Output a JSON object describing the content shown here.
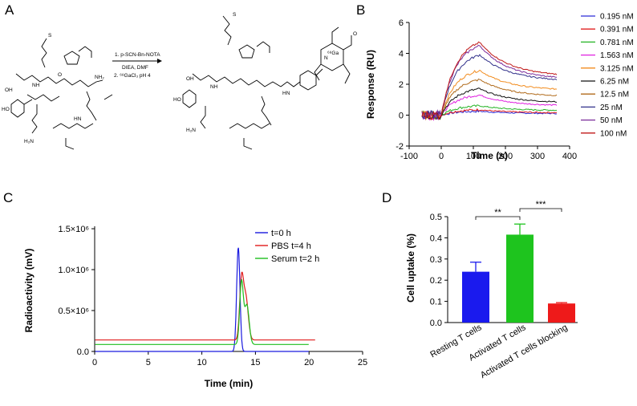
{
  "panels": {
    "a": {
      "letter": "A",
      "reaction_conditions": [
        "1. p-SCN-Bn-NOTA",
        "DIEA, DMF",
        "2. ⁶⁸GaCl₃ pH 4"
      ],
      "atom_labels": {
        "S": "S",
        "OH": "OH",
        "HO": "HO",
        "NH": "NH",
        "HN": "HN",
        "NH2": "NH₂",
        "H2N": "H₂N",
        "O": "O",
        "N": "N",
        "Ga": "⁶⁸Ga"
      }
    },
    "b": {
      "letter": "B"
    },
    "c": {
      "letter": "C"
    },
    "d": {
      "letter": "D"
    }
  },
  "chart_data": [
    {
      "id": "B",
      "type": "line",
      "title": "",
      "xlabel": "Time (s)",
      "ylabel": "Response (RU)",
      "xlim": [
        -100,
        400
      ],
      "ylim": [
        -2,
        6
      ],
      "xticks": [
        "-100",
        "0",
        "100",
        "200",
        "300",
        "400"
      ],
      "yticks": [
        "-2",
        "0",
        "2",
        "4",
        "6"
      ],
      "association_end_s": 120,
      "series": [
        {
          "name": "0.195 nM",
          "color": "#2b2bd8",
          "peak": 0.25,
          "end": 0.1
        },
        {
          "name": "0.391 nM",
          "color": "#e02020",
          "peak": 0.35,
          "end": 0.15
        },
        {
          "name": "0.781 nM",
          "color": "#22b322",
          "peak": 0.6,
          "end": 0.3
        },
        {
          "name": "1.563 nM",
          "color": "#e020e0",
          "peak": 1.3,
          "end": 0.6
        },
        {
          "name": "3.125 nM",
          "color": "#f28c1e",
          "peak": 2.9,
          "end": 1.6
        },
        {
          "name": "6.25 nM",
          "color": "#111111",
          "peak": 1.7,
          "end": 0.8
        },
        {
          "name": "12.5 nM",
          "color": "#b06a1a",
          "peak": 2.3,
          "end": 1.2
        },
        {
          "name": "25 nM",
          "color": "#30308a",
          "peak": 3.9,
          "end": 2.2
        },
        {
          "name": "50 nM",
          "color": "#7a2a9a",
          "peak": 4.5,
          "end": 2.3
        },
        {
          "name": "100 nM",
          "color": "#c01818",
          "peak": 4.7,
          "end": 2.5
        }
      ]
    },
    {
      "id": "C",
      "type": "line",
      "title": "",
      "xlabel": "Time (min)",
      "ylabel": "Radioactivity (mV)",
      "xlim": [
        0,
        25
      ],
      "ylim": [
        0,
        1500000
      ],
      "xticks": [
        "0",
        "5",
        "10",
        "15",
        "20",
        "25"
      ],
      "yticks": [
        "0.0",
        "0.5×10⁶",
        "1.0×10⁶",
        "1.5×10⁶"
      ],
      "series": [
        {
          "name": "t=0 h",
          "color": "#1a1adf",
          "x_end": 20.0,
          "baseline": 0,
          "peaks": [
            {
              "x": 13.4,
              "height": 1270000,
              "width": 0.22
            }
          ]
        },
        {
          "name": "PBS t=4 h",
          "color": "#e01b1b",
          "x_end": 20.6,
          "baseline": 140000,
          "peaks": [
            {
              "x": 13.7,
              "height": 700000,
              "width": 0.25
            },
            {
              "x": 14.1,
              "height": 520000,
              "width": 0.32
            }
          ]
        },
        {
          "name": "Serum t=2 h",
          "color": "#1fbf1f",
          "x_end": 20.0,
          "baseline": 85000,
          "peaks": [
            {
              "x": 13.7,
              "height": 760000,
              "width": 0.24
            },
            {
              "x": 14.2,
              "height": 480000,
              "width": 0.3
            }
          ]
        }
      ]
    },
    {
      "id": "D",
      "type": "bar",
      "title": "",
      "xlabel": "",
      "ylabel": "Cell uptake (%)",
      "ylim": [
        0,
        0.5
      ],
      "yticks": [
        "0.0",
        "0.1",
        "0.2",
        "0.3",
        "0.4",
        "0.5"
      ],
      "categories": [
        "Resting T cells",
        "Activated T cells",
        "Activated T cells blocking"
      ],
      "values": [
        0.24,
        0.415,
        0.09
      ],
      "errors": [
        0.045,
        0.05,
        0.004
      ],
      "colors": [
        "#1a1aee",
        "#1ec41e",
        "#ee1a1a"
      ],
      "significance": [
        {
          "from": 0,
          "to": 1,
          "label": "**"
        },
        {
          "from": 1,
          "to": 2,
          "label": "***"
        }
      ]
    }
  ]
}
